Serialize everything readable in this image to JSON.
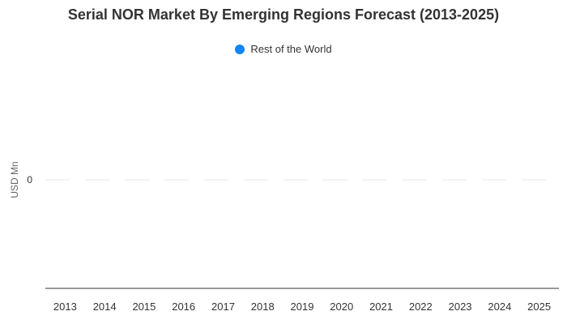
{
  "chart_data": {
    "type": "bar",
    "title": "Serial NOR Market By Emerging Regions Forecast (2013-2025)",
    "xlabel": "",
    "ylabel": "USD Mn",
    "categories": [
      "2013",
      "2014",
      "2015",
      "2016",
      "2017",
      "2018",
      "2019",
      "2020",
      "2021",
      "2022",
      "2023",
      "2024",
      "2025"
    ],
    "series": [
      {
        "name": "Rest of the World",
        "color": "#1185f5",
        "values": [
          0,
          0,
          0,
          0,
          0,
          0,
          0,
          0,
          0,
          0,
          0,
          0,
          0
        ]
      }
    ],
    "y_ticks": [
      "0"
    ],
    "ylim": [
      -1,
      1
    ],
    "grid": true,
    "legend_position": "top-center"
  }
}
